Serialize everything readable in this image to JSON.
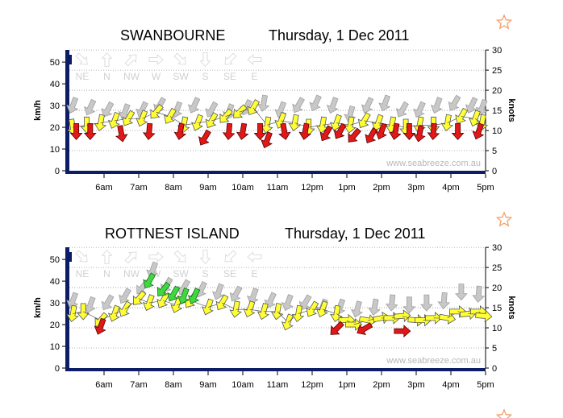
{
  "brand": {
    "watermark": "www.seabreeze.com.au"
  },
  "units": {
    "left": "km/h",
    "right": "knots"
  },
  "compass_legend": [
    "NE",
    "N",
    "NW",
    "W",
    "SW",
    "S",
    "SE",
    "E"
  ],
  "colors": {
    "navy": "#0c1c66",
    "gust": "#c8c8c8",
    "light": "#ffff33",
    "moderate": "#3fd93f",
    "calm": "#e01818",
    "star": "#f3a06a",
    "grid": "#9a9a9a"
  },
  "chart_data": [
    {
      "type": "scatter",
      "subtype": "wind-direction-arrows",
      "title": "SWANBOURNE",
      "date": "Thursday, 1 Dec 2011",
      "xlabel": "",
      "ylabel_left": "km/h",
      "ylabel_right": "knots",
      "ylim_kmh": [
        0,
        55.6
      ],
      "ylim_knots": [
        0,
        30
      ],
      "yticks_kmh": [
        0,
        10,
        20,
        30,
        40,
        50
      ],
      "yticks_knots": [
        0,
        5,
        10,
        15,
        20,
        25,
        30
      ],
      "xlim_hours": [
        5.0,
        17.0
      ],
      "xticks": [
        {
          "h": 6,
          "label": "6am"
        },
        {
          "h": 7,
          "label": "7am"
        },
        {
          "h": 8,
          "label": "8am"
        },
        {
          "h": 9,
          "label": "9am"
        },
        {
          "h": 10,
          "label": "10am"
        },
        {
          "h": 11,
          "label": "11am"
        },
        {
          "h": 12,
          "label": "12pm"
        },
        {
          "h": 13,
          "label": "1pm"
        },
        {
          "h": 14,
          "label": "2pm"
        },
        {
          "h": 15,
          "label": "3pm"
        },
        {
          "h": 16,
          "label": "4pm"
        },
        {
          "h": 17,
          "label": "5pm"
        }
      ],
      "series": [
        {
          "name": "gust",
          "t": [
            5.1,
            5.6,
            6.1,
            6.6,
            7.1,
            7.6,
            8.1,
            8.6,
            9.1,
            9.6,
            10.1,
            10.6,
            11.1,
            11.6,
            12.1,
            12.6,
            13.1,
            13.6,
            14.1,
            14.6,
            15.1,
            15.6,
            16.1,
            16.6,
            16.9
          ],
          "kmh": [
            30,
            29,
            28,
            27,
            28,
            30,
            28,
            30,
            28,
            27,
            29,
            31,
            28,
            30,
            31,
            30,
            26,
            30,
            31,
            28,
            28,
            30,
            31,
            30,
            29
          ],
          "dir": [
            110,
            115,
            120,
            110,
            115,
            120,
            110,
            115,
            120,
            110,
            115,
            100,
            110,
            120,
            115,
            110,
            105,
            115,
            110,
            120,
            115,
            110,
            120,
            115,
            110
          ]
        },
        {
          "name": "wind",
          "t": [
            5.1,
            5.5,
            5.9,
            6.3,
            6.7,
            7.1,
            7.5,
            7.9,
            8.3,
            8.7,
            9.1,
            9.5,
            9.9,
            10.3,
            10.7,
            11.1,
            11.5,
            11.9,
            12.3,
            12.7,
            13.1,
            13.5,
            13.9,
            14.3,
            14.7,
            15.1,
            15.5,
            15.9,
            16.3,
            16.7,
            16.9
          ],
          "kmh": [
            20,
            21,
            22,
            23,
            24,
            24,
            27,
            25,
            21,
            22,
            23,
            25,
            27,
            29,
            21,
            23,
            22,
            20,
            21,
            22,
            21,
            23,
            22,
            21,
            20,
            21,
            21,
            22,
            25,
            24,
            22
          ],
          "dir": [
            80,
            90,
            100,
            110,
            120,
            110,
            130,
            120,
            100,
            110,
            120,
            130,
            135,
            120,
            100,
            110,
            100,
            90,
            100,
            110,
            100,
            120,
            110,
            100,
            90,
            100,
            90,
            100,
            120,
            110,
            100
          ]
        },
        {
          "name": "calm",
          "t": [
            5.2,
            5.6,
            6.5,
            7.3,
            8.2,
            8.9,
            9.6,
            10.0,
            10.5,
            10.7,
            11.2,
            11.8,
            12.4,
            12.8,
            13.2,
            13.7,
            14.0,
            14.4,
            14.8,
            15.1,
            15.5,
            16.2,
            16.8
          ],
          "kmh": [
            18,
            18,
            17,
            18,
            18,
            15,
            18,
            18,
            18,
            14,
            18,
            18,
            17,
            18,
            16,
            16,
            18,
            18,
            18,
            17,
            18,
            18,
            18
          ],
          "dir": [
            90,
            90,
            80,
            95,
            100,
            120,
            95,
            100,
            90,
            110,
            80,
            100,
            120,
            120,
            130,
            120,
            110,
            100,
            90,
            100,
            95,
            90,
            110
          ]
        }
      ]
    },
    {
      "type": "scatter",
      "subtype": "wind-direction-arrows",
      "title": "ROTTNEST ISLAND",
      "date": "Thursday, 1 Dec 2011",
      "xlabel": "",
      "ylabel_left": "km/h",
      "ylabel_right": "knots",
      "ylim_kmh": [
        0,
        55.6
      ],
      "ylim_knots": [
        0,
        30
      ],
      "yticks_kmh": [
        0,
        10,
        20,
        30,
        40,
        50
      ],
      "yticks_knots": [
        0,
        5,
        10,
        15,
        20,
        25,
        30
      ],
      "xlim_hours": [
        5.0,
        17.0
      ],
      "xticks": [
        {
          "h": 6,
          "label": "6am"
        },
        {
          "h": 7,
          "label": "7am"
        },
        {
          "h": 8,
          "label": "8am"
        },
        {
          "h": 9,
          "label": "9am"
        },
        {
          "h": 10,
          "label": "10am"
        },
        {
          "h": 11,
          "label": "11am"
        },
        {
          "h": 12,
          "label": "12pm"
        },
        {
          "h": 13,
          "label": "1pm"
        },
        {
          "h": 14,
          "label": "2pm"
        },
        {
          "h": 15,
          "label": "3pm"
        },
        {
          "h": 16,
          "label": "4pm"
        },
        {
          "h": 17,
          "label": "5pm"
        }
      ],
      "series": [
        {
          "name": "gust",
          "t": [
            5.1,
            5.6,
            6.1,
            6.6,
            7.1,
            7.4,
            7.8,
            8.3,
            8.8,
            9.3,
            9.8,
            10.3,
            10.8,
            11.3,
            11.8,
            12.3,
            12.8,
            13.3,
            13.8,
            14.3,
            14.8,
            15.3,
            15.8,
            16.3,
            16.8
          ],
          "kmh": [
            31,
            29,
            30,
            33,
            37,
            45,
            38,
            37,
            36,
            35,
            34,
            33,
            31,
            30,
            30,
            28,
            28,
            27,
            28,
            30,
            29,
            30,
            31,
            35,
            34
          ],
          "dir": [
            110,
            110,
            120,
            120,
            130,
            110,
            120,
            120,
            115,
            110,
            120,
            110,
            115,
            110,
            120,
            110,
            110,
            105,
            100,
            95,
            90,
            90,
            95,
            90,
            95
          ]
        },
        {
          "name": "wind",
          "t": [
            5.1,
            5.4,
            5.9,
            6.3,
            6.6,
            7.0,
            7.3,
            7.7,
            8.1,
            8.5,
            9.0,
            9.4,
            9.8,
            10.2,
            10.6,
            11.0,
            11.3,
            11.6,
            12.0,
            12.3,
            12.7,
            13.0,
            13.2,
            13.6,
            14.0,
            14.3,
            14.6,
            15.0,
            15.2,
            15.5,
            15.9,
            16.2,
            16.5,
            16.8,
            16.95
          ],
          "kmh": [
            25,
            26,
            22,
            25,
            27,
            32,
            30,
            31,
            29,
            31,
            28,
            30,
            27,
            27,
            26,
            26,
            21,
            25,
            27,
            27,
            25,
            22,
            20,
            22,
            23,
            23,
            24,
            22,
            22,
            23,
            23,
            26,
            25,
            26,
            24
          ],
          "dir": [
            100,
            90,
            130,
            110,
            120,
            130,
            110,
            120,
            110,
            125,
            110,
            120,
            100,
            110,
            105,
            100,
            110,
            100,
            120,
            110,
            100,
            0,
            0,
            10,
            350,
            0,
            355,
            5,
            0,
            0,
            10,
            0,
            355,
            0,
            5
          ]
        },
        {
          "name": "moderate",
          "t": [
            7.3,
            7.7,
            8.0,
            8.3,
            8.6
          ],
          "kmh": [
            40,
            36,
            34,
            33,
            33
          ],
          "dir": [
            120,
            130,
            120,
            110,
            115
          ]
        },
        {
          "name": "calm",
          "t": [
            5.9,
            12.7,
            13.5,
            14.6
          ],
          "kmh": [
            19,
            18,
            18,
            17
          ],
          "dir": [
            110,
            135,
            150,
            0
          ]
        }
      ]
    }
  ]
}
